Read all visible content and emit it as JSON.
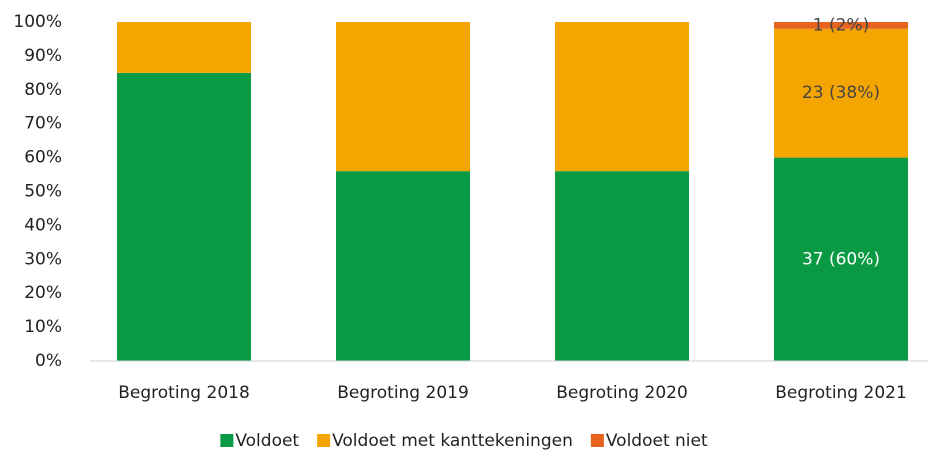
{
  "chart_data": {
    "type": "stacked_bar",
    "categories": [
      "Begroting 2018",
      "Begroting 2019",
      "Begroting 2020",
      "Begroting 2021"
    ],
    "series": [
      {
        "name": "Voldoet",
        "color": "#0b9a44",
        "values": [
          85,
          56,
          56,
          60
        ],
        "value_labels": [
          null,
          null,
          null,
          "37 (60%)"
        ]
      },
      {
        "name": "Voldoet met kanttekeningen",
        "color": "#f5a500",
        "values": [
          15,
          44,
          44,
          38
        ],
        "value_labels": [
          null,
          null,
          null,
          "23 (38%)"
        ]
      },
      {
        "name": "Voldoet niet",
        "color": "#e8641e",
        "values": [
          0,
          0,
          0,
          2
        ],
        "value_labels": [
          null,
          null,
          null,
          "1 (2%)"
        ]
      }
    ],
    "ylim": [
      0,
      100
    ],
    "yticks": [
      {
        "value": 0,
        "label": "0%"
      },
      {
        "value": 10,
        "label": "10%"
      },
      {
        "value": 20,
        "label": "20%"
      },
      {
        "value": 30,
        "label": "30%"
      },
      {
        "value": 40,
        "label": "40%"
      },
      {
        "value": 50,
        "label": "50%"
      },
      {
        "value": 60,
        "label": "60%"
      },
      {
        "value": 70,
        "label": "70%"
      },
      {
        "value": 80,
        "label": "80%"
      },
      {
        "value": 90,
        "label": "90%"
      },
      {
        "value": 100,
        "label": "100%"
      }
    ],
    "grid": false,
    "legend": "bottom"
  }
}
